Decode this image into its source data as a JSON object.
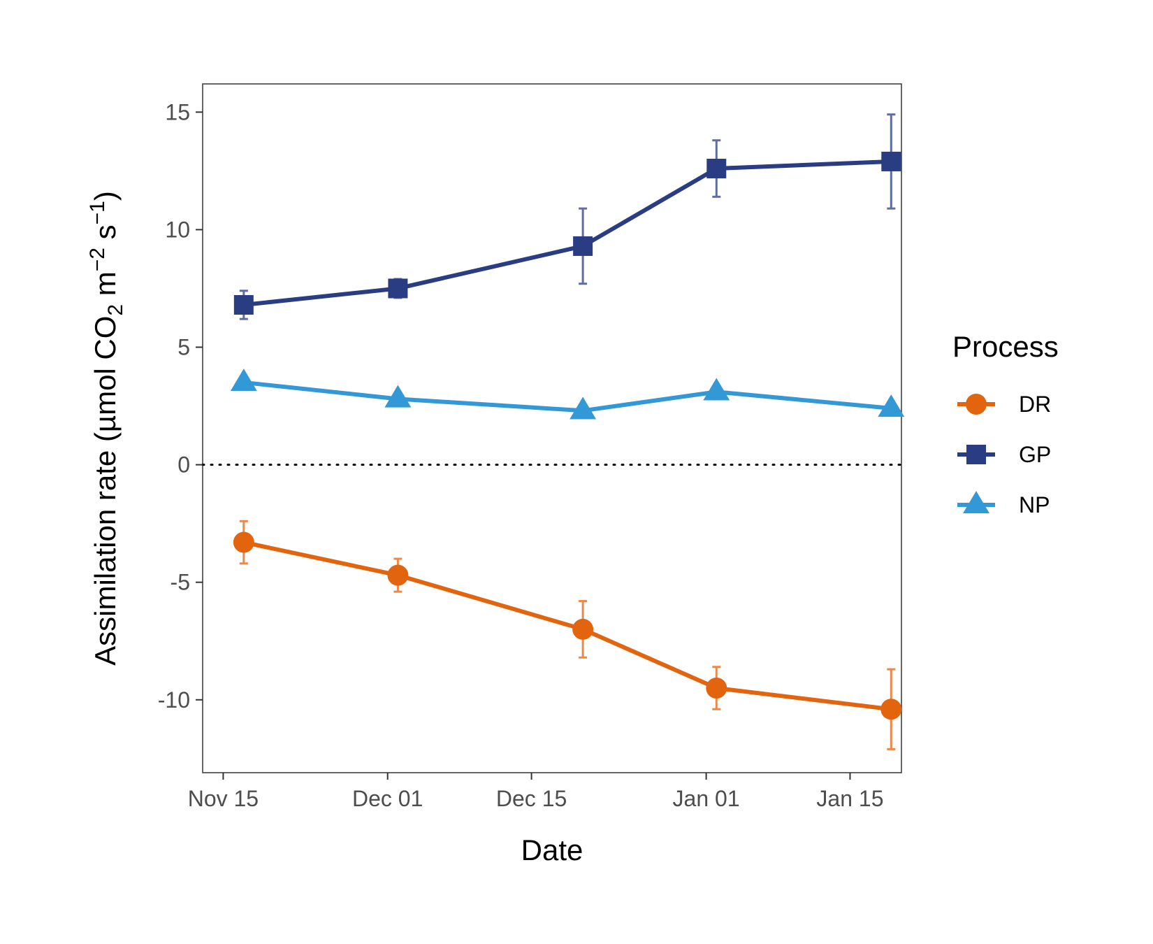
{
  "chart_data": {
    "type": "line",
    "xlabel": "Date",
    "ylabel": {
      "prefix": "Assimilation rate (µmol CO",
      "sub": "2",
      "mid1": " m",
      "sup1": "−2",
      "mid2": " s",
      "sup2": "−1",
      "suffix": ")"
    },
    "x_ticks": [
      "Nov 15",
      "Dec 01",
      "Dec 15",
      "Jan 01",
      "Jan 15"
    ],
    "x_tick_dates": [
      "2023-11-15",
      "2023-12-01",
      "2023-12-15",
      "2024-01-01",
      "2024-01-15"
    ],
    "xlim": [
      "2023-11-13",
      "2024-01-20"
    ],
    "y_ticks": [
      "15",
      "10",
      "5",
      "0",
      "-5",
      "-10"
    ],
    "y_tick_values": [
      15,
      10,
      5,
      0,
      -5,
      -10
    ],
    "ylim": [
      -13.1,
      16.2
    ],
    "reference_line": 0,
    "grid": false,
    "legend_position": "right",
    "legend_title": "Process",
    "series": [
      {
        "name": "DR",
        "color": "#e2640f",
        "marker": "circle",
        "x": [
          "2023-11-17",
          "2023-12-02",
          "2023-12-20",
          "2024-01-02",
          "2024-01-19"
        ],
        "y": [
          -3.3,
          -4.7,
          -7.0,
          -9.5,
          -10.4
        ],
        "y_err": [
          0.9,
          0.7,
          1.2,
          0.9,
          1.7
        ]
      },
      {
        "name": "GP",
        "color": "#2b3d82",
        "marker": "square",
        "x": [
          "2023-11-17",
          "2023-12-02",
          "2023-12-20",
          "2024-01-02",
          "2024-01-19"
        ],
        "y": [
          6.8,
          7.5,
          9.3,
          12.6,
          12.9
        ],
        "y_err": [
          0.6,
          0.4,
          1.6,
          1.2,
          2.0
        ]
      },
      {
        "name": "NP",
        "color": "#3399d6",
        "marker": "triangle",
        "x": [
          "2023-11-17",
          "2023-12-02",
          "2023-12-20",
          "2024-01-02",
          "2024-01-19"
        ],
        "y": [
          3.5,
          2.8,
          2.3,
          3.1,
          2.4
        ],
        "y_err": [
          0,
          0,
          0,
          0,
          0
        ]
      }
    ]
  }
}
